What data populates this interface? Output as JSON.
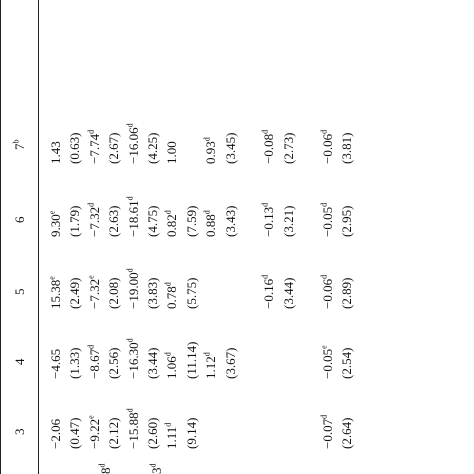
{
  "header": [
    "3",
    "4",
    "5",
    "6",
    "7ᵇ"
  ],
  "left_fragments": [
    "8ᵈ",
    "3ᵈ"
  ],
  "rows": [
    [
      "−2.06",
      "−4.65",
      "15.38ᵉ",
      "9.30ᵉ",
      "1.43"
    ],
    [
      "(0.47)",
      "(1.33)",
      "(2.49)",
      "(1.79)",
      "(0.63)"
    ],
    [
      "−9.22ᵉ",
      "−8.67ᵈ",
      "−7.32ᵉ",
      "−7.32ᵈ",
      "−7.74ᵈ"
    ],
    [
      "(2.12)",
      "(2.56)",
      "(2.08)",
      "(2.63)",
      "(2.67)"
    ],
    [
      "−15.88ᵈ",
      "−16.30ᵈ",
      "−19.00ᵈ",
      "−18.61ᵈ",
      "−16.06ᵈ"
    ],
    [
      "(2.60)",
      "(3.44)",
      "(3.83)",
      "(4.75)",
      "(4.25)"
    ],
    [
      "1.11ᵈ",
      "1.06ᵈ",
      "0.78ᵈ",
      "0.82ᵈ",
      "1.00"
    ],
    [
      "(9.14)",
      "(11.14)",
      "(5.75)",
      "(7.59)",
      ""
    ],
    [
      "",
      "1.12ᵈ",
      "",
      "0.88ᵈ",
      "0.93ᵈ"
    ],
    [
      "",
      "(3.67)",
      "",
      "(3.43)",
      "(3.45)"
    ],
    [
      "",
      "",
      "",
      "",
      ""
    ],
    [
      "",
      "",
      "−0.16ᵈ",
      "−0.13ᵈ",
      "−0.08ᵈ"
    ],
    [
      "",
      "",
      "(3.44)",
      "(3.21)",
      "(2.73)"
    ],
    [
      "",
      "",
      "",
      "",
      ""
    ],
    [
      "−0.07ᵈ",
      "−0.05ᵉ",
      "−0.06ᵈ",
      "−0.05ᵈ",
      "−0.06ᵈ"
    ],
    [
      "(2.64)",
      "(2.54)",
      "(2.89)",
      "(2.95)",
      "(3.81)"
    ]
  ]
}
